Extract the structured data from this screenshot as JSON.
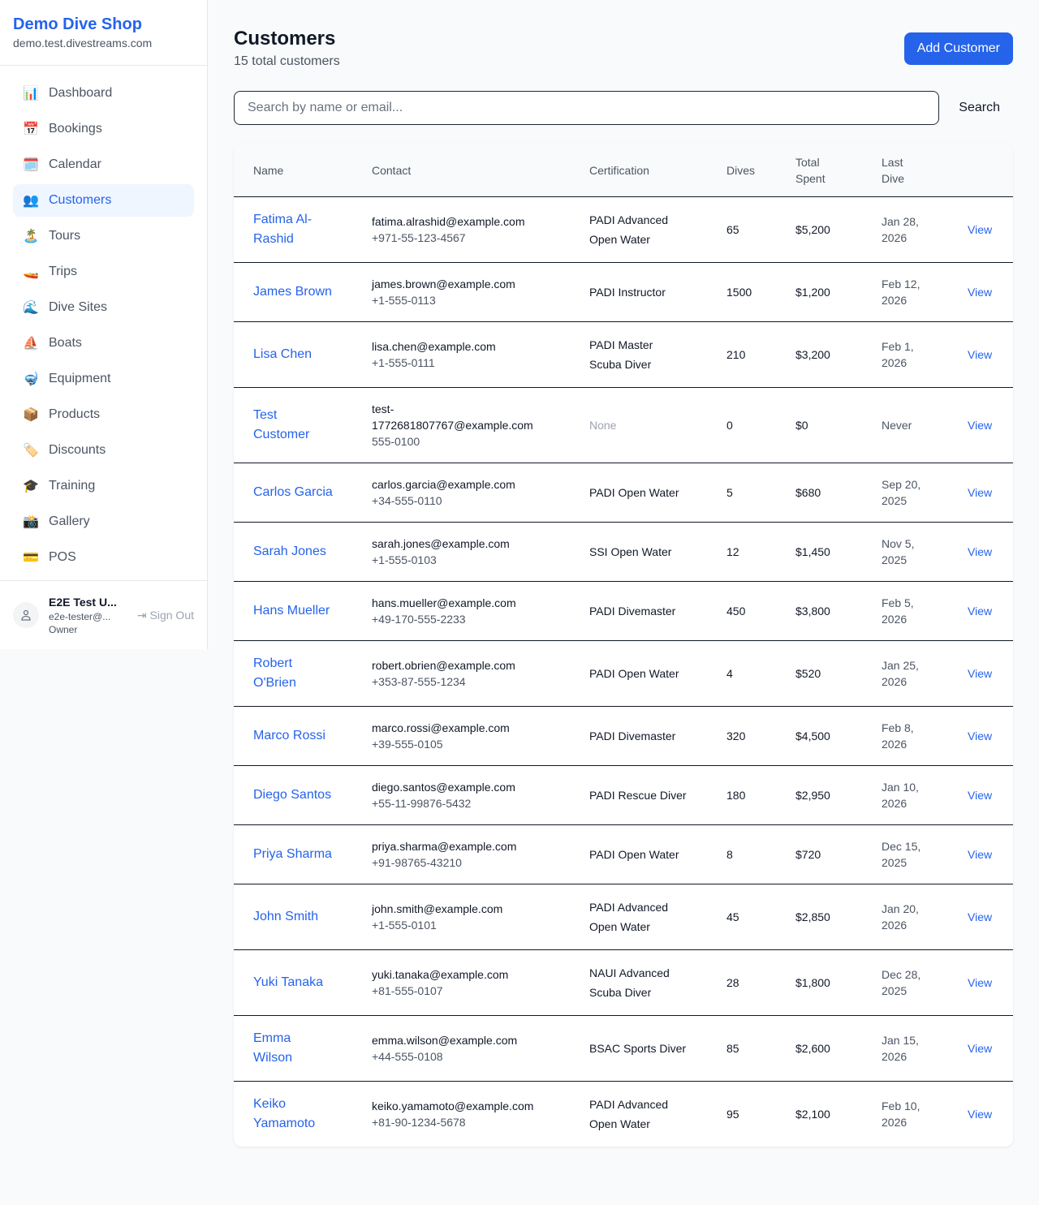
{
  "sidebar": {
    "brand": "Demo Dive Shop",
    "domain": "demo.test.divestreams.com",
    "items": [
      {
        "label": "Dashboard",
        "icon": "📊",
        "active": false
      },
      {
        "label": "Bookings",
        "icon": "📅",
        "active": false
      },
      {
        "label": "Calendar",
        "icon": "🗓️",
        "active": false
      },
      {
        "label": "Customers",
        "icon": "👥",
        "active": true
      },
      {
        "label": "Tours",
        "icon": "🏝️",
        "active": false
      },
      {
        "label": "Trips",
        "icon": "🚤",
        "active": false
      },
      {
        "label": "Dive Sites",
        "icon": "🌊",
        "active": false
      },
      {
        "label": "Boats",
        "icon": "⛵",
        "active": false
      },
      {
        "label": "Equipment",
        "icon": "🤿",
        "active": false
      },
      {
        "label": "Products",
        "icon": "📦",
        "active": false
      },
      {
        "label": "Discounts",
        "icon": "🏷️",
        "active": false
      },
      {
        "label": "Training",
        "icon": "🎓",
        "active": false
      },
      {
        "label": "Gallery",
        "icon": "📸",
        "active": false
      },
      {
        "label": "POS",
        "icon": "💳",
        "active": false
      }
    ],
    "user": {
      "name": "E2E Test U...",
      "email": "e2e-tester@...",
      "role": "Owner",
      "sign_out": "Sign Out"
    }
  },
  "header": {
    "title": "Customers",
    "subtitle": "15 total customers",
    "add_label": "Add Customer"
  },
  "search": {
    "placeholder": "Search by name or email...",
    "value": "",
    "button": "Search"
  },
  "table": {
    "columns": [
      "Name",
      "Contact",
      "Certification",
      "Dives",
      "Total Spent",
      "Last Dive",
      ""
    ],
    "view_label": "View",
    "rows": [
      {
        "name": "Fatima Al-Rashid",
        "email": "fatima.alrashid@example.com",
        "phone": "+971-55-123-4567",
        "cert": "PADI Advanced Open Water",
        "dives": "65",
        "spent": "$5,200",
        "last": "Jan 28, 2026"
      },
      {
        "name": "James Brown",
        "email": "james.brown@example.com",
        "phone": "+1-555-0113",
        "cert": "PADI Instructor",
        "dives": "1500",
        "spent": "$1,200",
        "last": "Feb 12, 2026"
      },
      {
        "name": "Lisa Chen",
        "email": "lisa.chen@example.com",
        "phone": "+1-555-0111",
        "cert": "PADI Master Scuba Diver",
        "dives": "210",
        "spent": "$3,200",
        "last": "Feb 1, 2026"
      },
      {
        "name": "Test Customer",
        "email": "test-1772681807767@example.com",
        "phone": "555-0100",
        "cert": "None",
        "dives": "0",
        "spent": "$0",
        "last": "Never"
      },
      {
        "name": "Carlos Garcia",
        "email": "carlos.garcia@example.com",
        "phone": "+34-555-0110",
        "cert": "PADI Open Water",
        "dives": "5",
        "spent": "$680",
        "last": "Sep 20, 2025"
      },
      {
        "name": "Sarah Jones",
        "email": "sarah.jones@example.com",
        "phone": "+1-555-0103",
        "cert": "SSI Open Water",
        "dives": "12",
        "spent": "$1,450",
        "last": "Nov 5, 2025"
      },
      {
        "name": "Hans Mueller",
        "email": "hans.mueller@example.com",
        "phone": "+49-170-555-2233",
        "cert": "PADI Divemaster",
        "dives": "450",
        "spent": "$3,800",
        "last": "Feb 5, 2026"
      },
      {
        "name": "Robert O'Brien",
        "email": "robert.obrien@example.com",
        "phone": "+353-87-555-1234",
        "cert": "PADI Open Water",
        "dives": "4",
        "spent": "$520",
        "last": "Jan 25, 2026"
      },
      {
        "name": "Marco Rossi",
        "email": "marco.rossi@example.com",
        "phone": "+39-555-0105",
        "cert": "PADI Divemaster",
        "dives": "320",
        "spent": "$4,500",
        "last": "Feb 8, 2026"
      },
      {
        "name": "Diego Santos",
        "email": "diego.santos@example.com",
        "phone": "+55-11-99876-5432",
        "cert": "PADI Rescue Diver",
        "dives": "180",
        "spent": "$2,950",
        "last": "Jan 10, 2026"
      },
      {
        "name": "Priya Sharma",
        "email": "priya.sharma@example.com",
        "phone": "+91-98765-43210",
        "cert": "PADI Open Water",
        "dives": "8",
        "spent": "$720",
        "last": "Dec 15, 2025"
      },
      {
        "name": "John Smith",
        "email": "john.smith@example.com",
        "phone": "+1-555-0101",
        "cert": "PADI Advanced Open Water",
        "dives": "45",
        "spent": "$2,850",
        "last": "Jan 20, 2026"
      },
      {
        "name": "Yuki Tanaka",
        "email": "yuki.tanaka@example.com",
        "phone": "+81-555-0107",
        "cert": "NAUI Advanced Scuba Diver",
        "dives": "28",
        "spent": "$1,800",
        "last": "Dec 28, 2025"
      },
      {
        "name": "Emma Wilson",
        "email": "emma.wilson@example.com",
        "phone": "+44-555-0108",
        "cert": "BSAC Sports Diver",
        "dives": "85",
        "spent": "$2,600",
        "last": "Jan 15, 2026"
      },
      {
        "name": "Keiko Yamamoto",
        "email": "keiko.yamamoto@example.com",
        "phone": "+81-90-1234-5678",
        "cert": "PADI Advanced Open Water",
        "dives": "95",
        "spent": "$2,100",
        "last": "Feb 10, 2026"
      }
    ]
  }
}
